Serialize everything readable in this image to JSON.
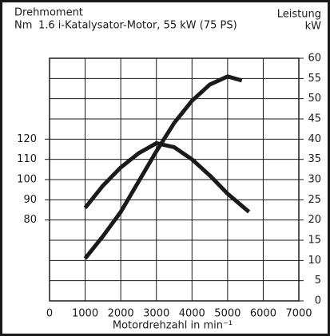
{
  "chart_data": {
    "type": "line",
    "title": "1.6 i-Katalysator-Motor, 55 kW (75 PS)",
    "y_label_top": "Leistung",
    "y_unit": "kW",
    "y2_label_top": "Drehmoment",
    "y2_unit": "Nm",
    "xlabel": "Motordrehzahl in min⁻¹",
    "xlim": [
      0,
      7000
    ],
    "xticks": [
      0,
      1000,
      2000,
      3000,
      4000,
      5000,
      6000,
      7000
    ],
    "ylim": [
      0,
      60
    ],
    "yticks": [
      0,
      5,
      10,
      15,
      20,
      25,
      30,
      35,
      40,
      45,
      50,
      55,
      60
    ],
    "y2lim": [
      40,
      160
    ],
    "y2ticks": [
      80,
      90,
      100,
      110,
      120
    ],
    "grid": true,
    "series": [
      {
        "name": "Leistung",
        "color": "#1a1a1a",
        "axis": "y",
        "x": [
          1000,
          1500,
          2000,
          2500,
          3000,
          3500,
          4000,
          4500,
          5000,
          5400
        ],
        "values": [
          10.5,
          16,
          22,
          29.5,
          37,
          44,
          49.5,
          53.5,
          55.5,
          54.5
        ]
      },
      {
        "name": "Drehmoment",
        "color": "#1a1a1a",
        "axis": "y2",
        "x": [
          1000,
          1500,
          2000,
          2500,
          3000,
          3500,
          4000,
          4500,
          5000,
          5600
        ],
        "values": [
          86,
          97,
          106,
          113,
          118,
          116,
          110,
          102,
          93,
          84
        ]
      }
    ]
  }
}
